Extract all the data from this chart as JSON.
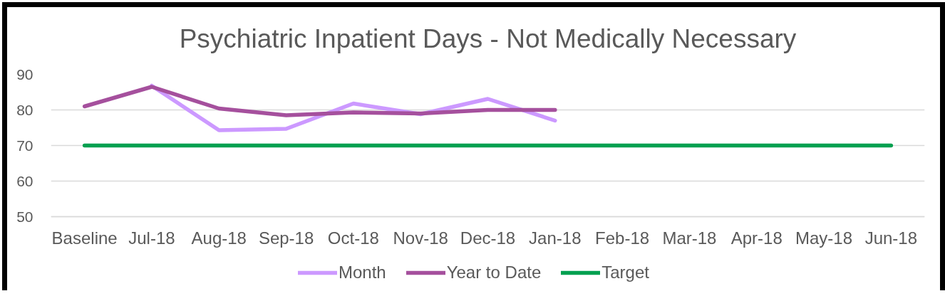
{
  "chart_data": {
    "type": "line",
    "title": "Psychiatric Inpatient Days - Not Medically Necessary",
    "categories": [
      "Baseline",
      "Jul-18",
      "Aug-18",
      "Sep-18",
      "Oct-18",
      "Nov-18",
      "Dec-18",
      "Jan-18",
      "Feb-18",
      "Mar-18",
      "Apr-18",
      "May-18",
      "Jun-18"
    ],
    "series": [
      {
        "name": "Month",
        "color": "#cc99ff",
        "values": [
          null,
          86.8,
          74.3,
          74.7,
          81.8,
          78.8,
          83.1,
          77.0,
          null,
          null,
          null,
          null,
          null
        ]
      },
      {
        "name": "Year to Date",
        "color": "#a5509d",
        "values": [
          81.0,
          86.5,
          80.4,
          78.5,
          79.3,
          79.0,
          80.0,
          80.0,
          null,
          null,
          null,
          null,
          null
        ]
      },
      {
        "name": "Target",
        "color": "#00a050",
        "values": [
          70,
          70,
          70,
          70,
          70,
          70,
          70,
          70,
          70,
          70,
          70,
          70,
          70
        ]
      }
    ],
    "ylim": [
      50,
      90
    ],
    "yticks": [
      50,
      60,
      70,
      80,
      90
    ],
    "grid": "y",
    "legend": "bottom"
  }
}
